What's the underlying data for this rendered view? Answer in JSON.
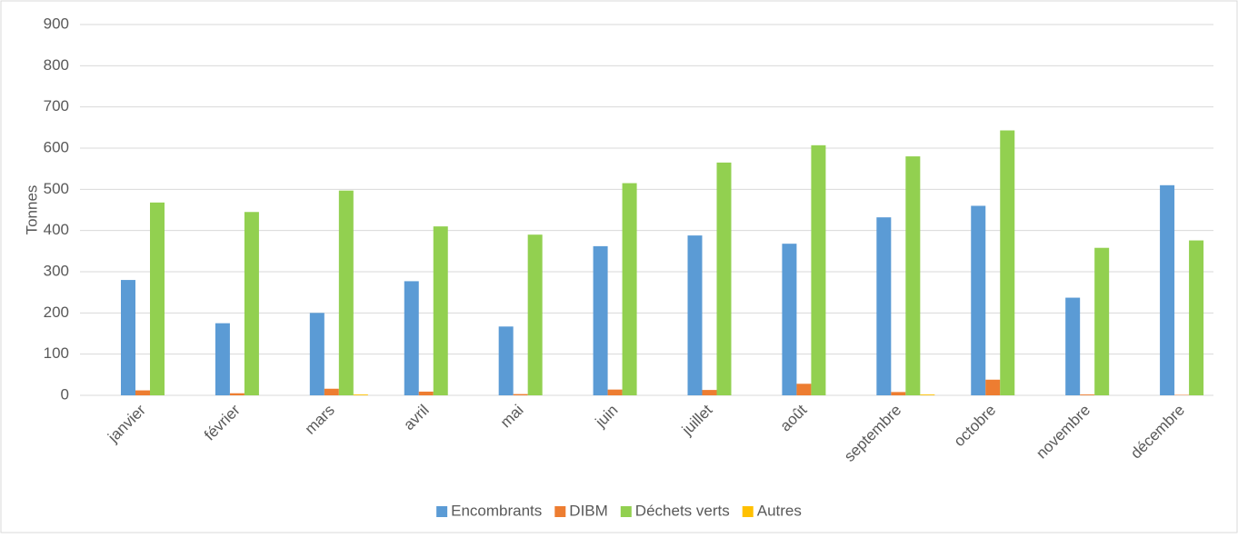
{
  "chart_data": {
    "type": "bar",
    "y_label": "Tonnes",
    "categories": [
      "janvier",
      "février",
      "mars",
      "avril",
      "mai",
      "juin",
      "juillet",
      "août",
      "septembre",
      "octobre",
      "novembre",
      "décembre"
    ],
    "series": [
      {
        "name": "Encombrants",
        "color": "#5b9bd5",
        "values": [
          280,
          175,
          200,
          277,
          167,
          362,
          388,
          368,
          432,
          460,
          237,
          510
        ]
      },
      {
        "name": "DIBM",
        "color": "#ed7d31",
        "values": [
          12,
          5,
          16,
          9,
          3,
          14,
          13,
          28,
          8,
          38,
          2,
          1
        ]
      },
      {
        "name": "Déchets verts",
        "color": "#92d050",
        "values": [
          468,
          445,
          497,
          410,
          390,
          515,
          565,
          607,
          580,
          643,
          358,
          376
        ]
      },
      {
        "name": "Autres",
        "color": "#ffc000",
        "values": [
          0,
          0,
          2,
          0,
          0,
          0,
          0,
          0,
          2,
          0,
          0,
          0
        ]
      }
    ],
    "ylim": [
      0,
      900
    ],
    "yticks": [
      0,
      100,
      200,
      300,
      400,
      500,
      600,
      700,
      800,
      900
    ],
    "grid": true,
    "legend": "bottom"
  }
}
